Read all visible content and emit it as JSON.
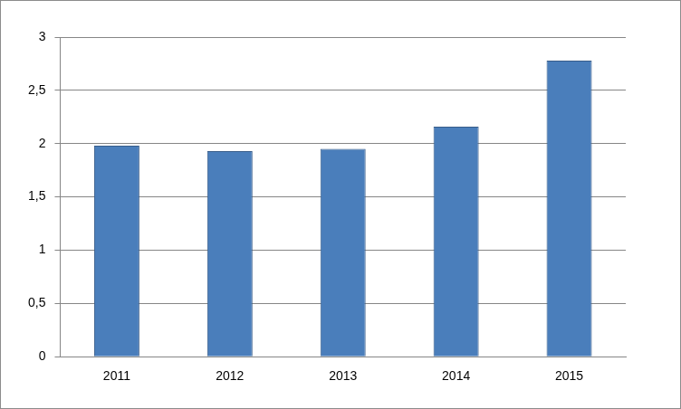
{
  "chart_data": {
    "type": "bar",
    "categories": [
      "2011",
      "2012",
      "2013",
      "2014",
      "2015"
    ],
    "values": [
      1.98,
      1.93,
      1.95,
      2.16,
      2.78
    ],
    "color": "#4a7ebb",
    "ylim": [
      0,
      3
    ],
    "yticks": [
      0,
      {
        "value": 0.5,
        "label": "0,5"
      },
      1,
      {
        "value": 1.5,
        "label": "1,5"
      },
      2,
      {
        "value": 2.5,
        "label": "2,5"
      },
      3
    ],
    "grid": true
  }
}
